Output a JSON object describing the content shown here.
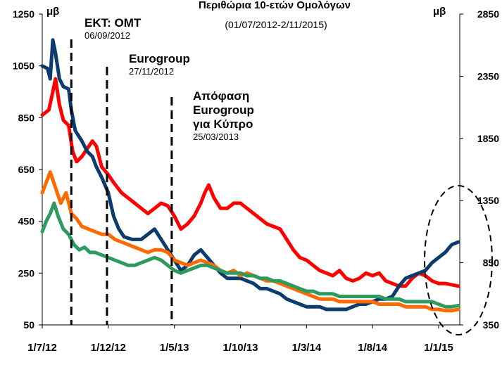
{
  "chart_data": {
    "type": "line",
    "title": "Περιθώρια 10-ετών Ομολόγων",
    "subtitle": "(01/07/2012-2/11/2015)",
    "y_left_unit": "μβ",
    "y_right_unit": "μβ",
    "y_left_ticks": [
      "1250",
      "1050",
      "850",
      "650",
      "450",
      "250",
      "50"
    ],
    "y_right_ticks": [
      "2850",
      "2350",
      "1850",
      "1350",
      "850",
      "350"
    ],
    "ylim_left": [
      50,
      1250
    ],
    "ylim_right": [
      350,
      2850
    ],
    "x_ticks": [
      "1/7/12",
      "1/12/12",
      "1/5/13",
      "1/10/13",
      "1/3/14",
      "1/8/14",
      "1/1/15"
    ],
    "x_tick_months": [
      0,
      5,
      10,
      15,
      20,
      25,
      30
    ],
    "xlim_months": [
      0,
      31.6
    ],
    "annotations": [
      {
        "lines": [
          "ΕΚΤ: OMT"
        ],
        "date": "06/09/2012",
        "month": 2.2
      },
      {
        "lines": [
          "Eurogroup"
        ],
        "date": "27/11/2012",
        "month": 4.9
      },
      {
        "lines": [
          "Απόφαση",
          "Eurogroup",
          "για Κύπρο"
        ],
        "date": "25/03/2013",
        "month": 9.8
      }
    ],
    "highlight": "ellipse around the latest period",
    "series": [
      {
        "color": "#ff0000",
        "axis": "left",
        "points": [
          [
            0,
            860
          ],
          [
            0.5,
            880
          ],
          [
            0.8,
            950
          ],
          [
            1,
            1000
          ],
          [
            1.3,
            900
          ],
          [
            1.6,
            840
          ],
          [
            2,
            820
          ],
          [
            2.3,
            720
          ],
          [
            2.6,
            680
          ],
          [
            3,
            700
          ],
          [
            3.4,
            730
          ],
          [
            3.8,
            760
          ],
          [
            4.1,
            740
          ],
          [
            4.5,
            660
          ],
          [
            5,
            630
          ],
          [
            5.4,
            600
          ],
          [
            6,
            560
          ],
          [
            6.5,
            540
          ],
          [
            7,
            520
          ],
          [
            7.5,
            500
          ],
          [
            8,
            480
          ],
          [
            8.5,
            500
          ],
          [
            9,
            520
          ],
          [
            9.5,
            510
          ],
          [
            10,
            470
          ],
          [
            10.5,
            420
          ],
          [
            11,
            440
          ],
          [
            11.5,
            470
          ],
          [
            12,
            520
          ],
          [
            12.3,
            560
          ],
          [
            12.6,
            590
          ],
          [
            13,
            540
          ],
          [
            13.5,
            500
          ],
          [
            14,
            500
          ],
          [
            14.5,
            520
          ],
          [
            15,
            520
          ],
          [
            15.5,
            500
          ],
          [
            16,
            480
          ],
          [
            16.5,
            460
          ],
          [
            17,
            440
          ],
          [
            17.5,
            430
          ],
          [
            18,
            420
          ],
          [
            18.5,
            380
          ],
          [
            19,
            340
          ],
          [
            19.5,
            310
          ],
          [
            20,
            300
          ],
          [
            20.5,
            280
          ],
          [
            21,
            260
          ],
          [
            21.5,
            250
          ],
          [
            22,
            240
          ],
          [
            22.5,
            260
          ],
          [
            23,
            230
          ],
          [
            23.5,
            220
          ],
          [
            24,
            230
          ],
          [
            24.5,
            250
          ],
          [
            25,
            240
          ],
          [
            25.5,
            250
          ],
          [
            26,
            220
          ],
          [
            26.5,
            210
          ],
          [
            27,
            200
          ],
          [
            27.5,
            200
          ],
          [
            28,
            230
          ],
          [
            28.5,
            250
          ],
          [
            29,
            240
          ],
          [
            29.5,
            220
          ],
          [
            30,
            210
          ],
          [
            30.5,
            210
          ],
          [
            31,
            205
          ],
          [
            31.5,
            200
          ]
        ]
      },
      {
        "color": "#0c3b6e",
        "axis": "left",
        "points": [
          [
            0,
            1050
          ],
          [
            0.4,
            1040
          ],
          [
            0.6,
            1000
          ],
          [
            0.8,
            1150
          ],
          [
            1,
            1100
          ],
          [
            1.3,
            1000
          ],
          [
            1.6,
            970
          ],
          [
            2,
            960
          ],
          [
            2.2,
            880
          ],
          [
            2.5,
            800
          ],
          [
            3,
            760
          ],
          [
            3.4,
            720
          ],
          [
            3.8,
            700
          ],
          [
            4.1,
            660
          ],
          [
            4.5,
            620
          ],
          [
            5,
            560
          ],
          [
            5.4,
            470
          ],
          [
            5.8,
            420
          ],
          [
            6.2,
            390
          ],
          [
            6.8,
            380
          ],
          [
            7.5,
            380
          ],
          [
            8,
            400
          ],
          [
            8.5,
            420
          ],
          [
            9,
            380
          ],
          [
            9.5,
            340
          ],
          [
            10,
            300
          ],
          [
            10.5,
            260
          ],
          [
            11,
            280
          ],
          [
            11.5,
            320
          ],
          [
            12,
            340
          ],
          [
            12.5,
            310
          ],
          [
            13,
            280
          ],
          [
            13.5,
            250
          ],
          [
            14,
            230
          ],
          [
            14.5,
            230
          ],
          [
            15,
            230
          ],
          [
            15.5,
            220
          ],
          [
            16,
            210
          ],
          [
            16.5,
            190
          ],
          [
            17,
            190
          ],
          [
            17.5,
            180
          ],
          [
            18,
            170
          ],
          [
            18.5,
            150
          ],
          [
            19,
            140
          ],
          [
            19.5,
            130
          ],
          [
            20,
            120
          ],
          [
            20.5,
            120
          ],
          [
            21,
            120
          ],
          [
            21.5,
            110
          ],
          [
            22,
            110
          ],
          [
            22.5,
            110
          ],
          [
            23,
            110
          ],
          [
            23.5,
            120
          ],
          [
            24,
            130
          ],
          [
            24.5,
            130
          ],
          [
            25,
            140
          ],
          [
            25.5,
            150
          ],
          [
            26,
            150
          ],
          [
            26.5,
            160
          ],
          [
            27,
            200
          ],
          [
            27.5,
            230
          ],
          [
            28,
            240
          ],
          [
            28.5,
            250
          ],
          [
            29,
            260
          ],
          [
            29.5,
            290
          ],
          [
            30,
            310
          ],
          [
            30.5,
            330
          ],
          [
            31,
            360
          ],
          [
            31.5,
            370
          ]
        ]
      },
      {
        "color": "#ff6a00",
        "axis": "left",
        "points": [
          [
            0,
            560
          ],
          [
            0.3,
            600
          ],
          [
            0.6,
            640
          ],
          [
            1,
            580
          ],
          [
            1.4,
            520
          ],
          [
            1.8,
            560
          ],
          [
            2.2,
            480
          ],
          [
            2.6,
            460
          ],
          [
            3,
            430
          ],
          [
            3.5,
            420
          ],
          [
            4,
            410
          ],
          [
            4.5,
            400
          ],
          [
            5,
            400
          ],
          [
            5.5,
            380
          ],
          [
            6,
            370
          ],
          [
            6.5,
            360
          ],
          [
            7,
            350
          ],
          [
            7.5,
            340
          ],
          [
            8,
            330
          ],
          [
            8.5,
            340
          ],
          [
            9,
            340
          ],
          [
            9.5,
            330
          ],
          [
            10,
            300
          ],
          [
            10.5,
            290
          ],
          [
            11,
            280
          ],
          [
            11.5,
            290
          ],
          [
            12,
            300
          ],
          [
            12.5,
            290
          ],
          [
            13,
            280
          ],
          [
            13.5,
            260
          ],
          [
            14,
            250
          ],
          [
            14.5,
            260
          ],
          [
            15,
            240
          ],
          [
            15.5,
            250
          ],
          [
            16,
            240
          ],
          [
            16.5,
            230
          ],
          [
            17,
            220
          ],
          [
            17.5,
            220
          ],
          [
            18,
            210
          ],
          [
            18.5,
            200
          ],
          [
            19,
            190
          ],
          [
            19.5,
            180
          ],
          [
            20,
            170
          ],
          [
            20.5,
            160
          ],
          [
            21,
            150
          ],
          [
            21.5,
            150
          ],
          [
            22,
            150
          ],
          [
            22.5,
            140
          ],
          [
            23,
            140
          ],
          [
            23.5,
            140
          ],
          [
            24,
            140
          ],
          [
            24.5,
            140
          ],
          [
            25,
            140
          ],
          [
            25.5,
            130
          ],
          [
            26,
            130
          ],
          [
            26.5,
            130
          ],
          [
            27,
            130
          ],
          [
            27.5,
            120
          ],
          [
            28,
            120
          ],
          [
            28.5,
            120
          ],
          [
            29,
            120
          ],
          [
            29.5,
            110
          ],
          [
            30,
            110
          ],
          [
            30.5,
            105
          ],
          [
            31,
            105
          ],
          [
            31.5,
            110
          ]
        ]
      },
      {
        "color": "#2e9b5e",
        "axis": "left",
        "points": [
          [
            0,
            410
          ],
          [
            0.3,
            450
          ],
          [
            0.6,
            480
          ],
          [
            0.9,
            520
          ],
          [
            1.2,
            470
          ],
          [
            1.6,
            420
          ],
          [
            2,
            400
          ],
          [
            2.4,
            360
          ],
          [
            2.8,
            340
          ],
          [
            3.2,
            350
          ],
          [
            3.6,
            330
          ],
          [
            4,
            330
          ],
          [
            4.5,
            320
          ],
          [
            5,
            310
          ],
          [
            5.5,
            300
          ],
          [
            6,
            290
          ],
          [
            6.5,
            280
          ],
          [
            7,
            280
          ],
          [
            7.5,
            290
          ],
          [
            8,
            300
          ],
          [
            8.5,
            310
          ],
          [
            9,
            300
          ],
          [
            9.5,
            280
          ],
          [
            10,
            260
          ],
          [
            10.5,
            250
          ],
          [
            11,
            260
          ],
          [
            11.5,
            270
          ],
          [
            12,
            280
          ],
          [
            12.5,
            280
          ],
          [
            13,
            270
          ],
          [
            13.5,
            260
          ],
          [
            14,
            250
          ],
          [
            14.5,
            250
          ],
          [
            15,
            250
          ],
          [
            15.5,
            240
          ],
          [
            16,
            240
          ],
          [
            16.5,
            230
          ],
          [
            17,
            230
          ],
          [
            17.5,
            220
          ],
          [
            18,
            220
          ],
          [
            18.5,
            210
          ],
          [
            19,
            200
          ],
          [
            19.5,
            190
          ],
          [
            20,
            180
          ],
          [
            20.5,
            180
          ],
          [
            21,
            170
          ],
          [
            21.5,
            170
          ],
          [
            22,
            170
          ],
          [
            22.5,
            160
          ],
          [
            23,
            160
          ],
          [
            23.5,
            160
          ],
          [
            24,
            160
          ],
          [
            24.5,
            160
          ],
          [
            25,
            160
          ],
          [
            25.5,
            160
          ],
          [
            26,
            150
          ],
          [
            26.5,
            150
          ],
          [
            27,
            150
          ],
          [
            27.5,
            140
          ],
          [
            28,
            140
          ],
          [
            28.5,
            140
          ],
          [
            29,
            140
          ],
          [
            29.5,
            140
          ],
          [
            30,
            130
          ],
          [
            30.5,
            120
          ],
          [
            31,
            120
          ],
          [
            31.5,
            125
          ]
        ]
      }
    ]
  }
}
